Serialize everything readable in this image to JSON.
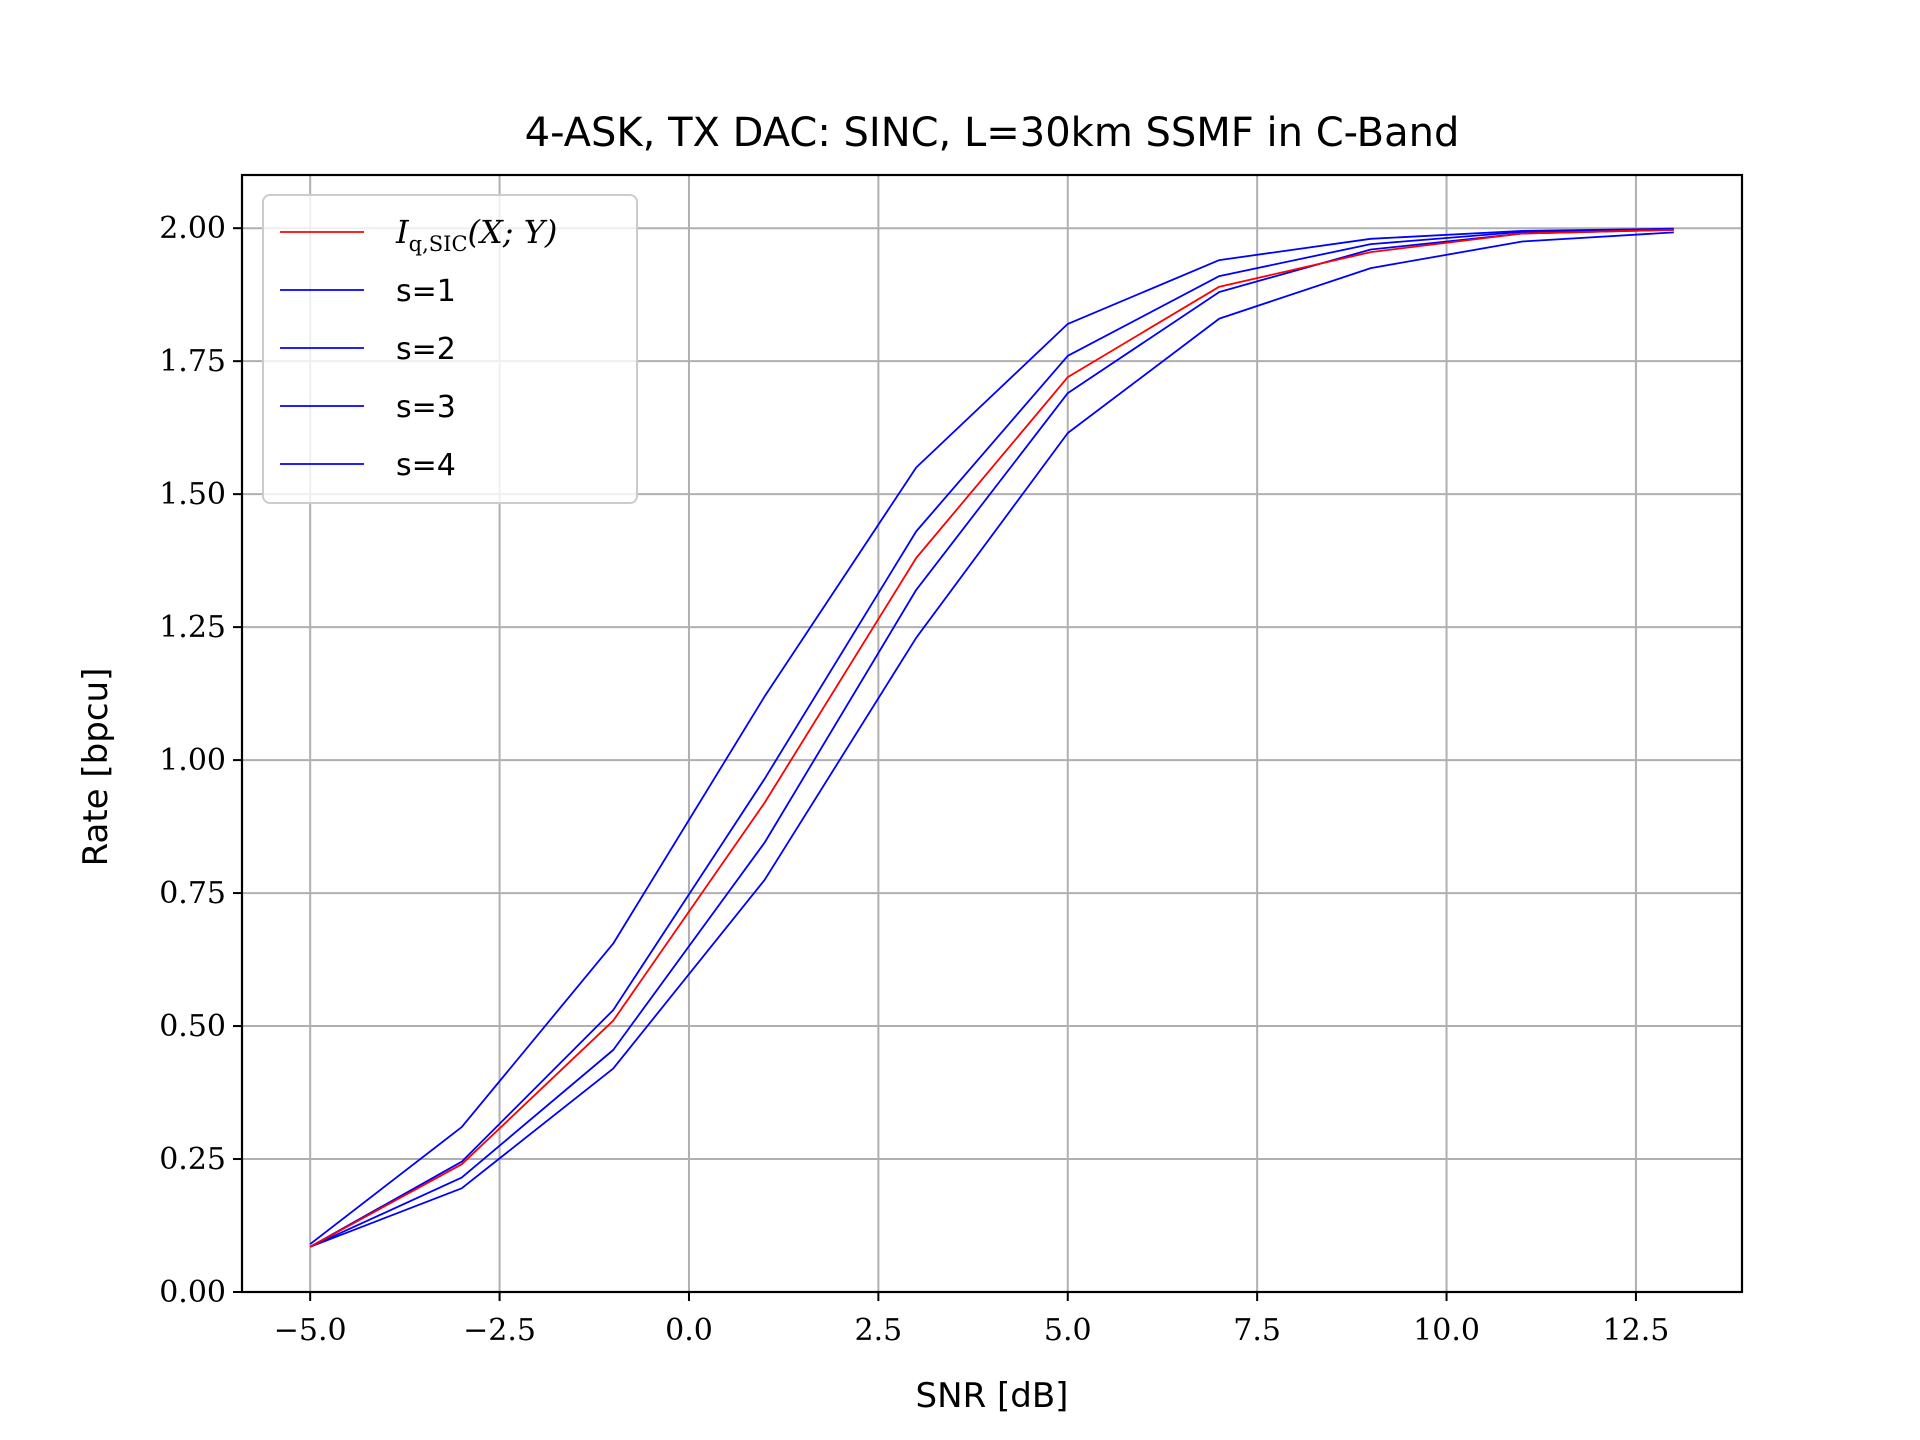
{
  "chart_data": {
    "type": "line",
    "title": "4-ASK, TX DAC: SINC, L=30km SSMF in C-Band",
    "xlabel": "SNR [dB]",
    "ylabel": "Rate [bpcu]",
    "xlim": [
      -5.9,
      13.9
    ],
    "ylim": [
      0.0,
      2.1
    ],
    "xticks": [
      -5.0,
      -2.5,
      0.0,
      2.5,
      5.0,
      7.5,
      10.0,
      12.5
    ],
    "xtick_labels": [
      "−5.0",
      "−2.5",
      "0.0",
      "2.5",
      "5.0",
      "7.5",
      "10.0",
      "12.5"
    ],
    "yticks": [
      0.0,
      0.25,
      0.5,
      0.75,
      1.0,
      1.25,
      1.5,
      1.75,
      2.0
    ],
    "ytick_labels": [
      "0.00",
      "0.25",
      "0.50",
      "0.75",
      "1.00",
      "1.25",
      "1.50",
      "1.75",
      "2.00"
    ],
    "grid": true,
    "legend_position": "top-left",
    "x": [
      -5,
      -3,
      -1,
      1,
      3,
      5,
      7,
      9,
      11,
      13
    ],
    "series": [
      {
        "name": "I_q,SIC(X;Y)",
        "name_main": "I",
        "name_sub": "q,SIC",
        "name_tail": "(X; Y)",
        "color": "#ff0000",
        "values": [
          0.085,
          0.24,
          0.51,
          0.92,
          1.38,
          1.72,
          1.89,
          1.955,
          1.99,
          1.997
        ]
      },
      {
        "name": "s=1",
        "color": "#0000ff",
        "values": [
          0.085,
          0.195,
          0.42,
          0.775,
          1.23,
          1.615,
          1.83,
          1.925,
          1.975,
          1.992
        ]
      },
      {
        "name": "s=2",
        "color": "#0000ff",
        "values": [
          0.085,
          0.215,
          0.455,
          0.845,
          1.32,
          1.69,
          1.88,
          1.96,
          1.99,
          1.997
        ]
      },
      {
        "name": "s=3",
        "color": "#0000ff",
        "values": [
          0.085,
          0.245,
          0.53,
          0.965,
          1.43,
          1.76,
          1.91,
          1.97,
          1.993,
          1.998
        ]
      },
      {
        "name": "s=4",
        "color": "#0000ff",
        "values": [
          0.09,
          0.31,
          0.655,
          1.12,
          1.55,
          1.82,
          1.94,
          1.98,
          1.995,
          1.999
        ]
      }
    ],
    "colors": {
      "grid": "#b0b0b0",
      "axes": "#000000",
      "legend_border": "#cccccc"
    }
  }
}
